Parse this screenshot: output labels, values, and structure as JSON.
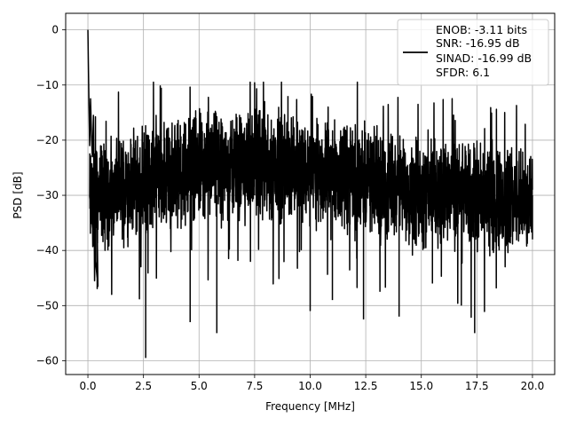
{
  "chart_data": {
    "type": "line",
    "title": "",
    "xlabel": "Frequency [MHz]",
    "ylabel": "PSD [dB]",
    "xlim": [
      -1.0,
      21.0
    ],
    "ylim": [
      -62.5,
      3.0
    ],
    "x_ticks": [
      0.0,
      2.5,
      5.0,
      7.5,
      10.0,
      12.5,
      15.0,
      17.5,
      20.0
    ],
    "x_tick_labels": [
      "0.0",
      "2.5",
      "5.0",
      "7.5",
      "10.0",
      "12.5",
      "15.0",
      "17.5",
      "20.0"
    ],
    "y_ticks": [
      0,
      -10,
      -20,
      -30,
      -40,
      -50,
      -60
    ],
    "y_tick_labels": [
      "0",
      "−10",
      "−20",
      "−30",
      "−40",
      "−50",
      "−60"
    ],
    "grid": true,
    "legend_position": "top-right",
    "legend_lines": [
      "ENOB: -3.11 bits",
      "SNR: -16.95 dB",
      "SINAD: -16.99 dB",
      "SFDR: 6.1"
    ],
    "series_color": "#000000",
    "notes_on_data": "Dense noise-like PSD trace from 0 to 20 MHz; main envelope roughly -35 to -15 dB, peak 0 dB at 0 MHz.",
    "series": [
      {
        "x": [
          0.0,
          0.02,
          0.05,
          0.08,
          0.12,
          0.16,
          0.2,
          0.25,
          0.3,
          0.38,
          0.45,
          0.6,
          0.9,
          1.6,
          2.6,
          3.3,
          4.6,
          5.8,
          7.5,
          9.0,
          10.0,
          11.0,
          12.4,
          14.0,
          15.5,
          16.8,
          17.4,
          18.5,
          20.0
        ],
        "y": [
          0.0,
          -6.0,
          -14.0,
          -21.0,
          -12.5,
          -19.0,
          -23.0,
          -15.5,
          -45.5,
          -22.0,
          -46.5,
          -21.0,
          -40.0,
          -35.0,
          -59.5,
          -10.5,
          -53.0,
          -55.0,
          -9.5,
          -12.0,
          -51.0,
          -49.0,
          -52.5,
          -52.0,
          -46.0,
          -50.0,
          -55.0,
          -40.0,
          -38.0
        ]
      }
    ]
  }
}
